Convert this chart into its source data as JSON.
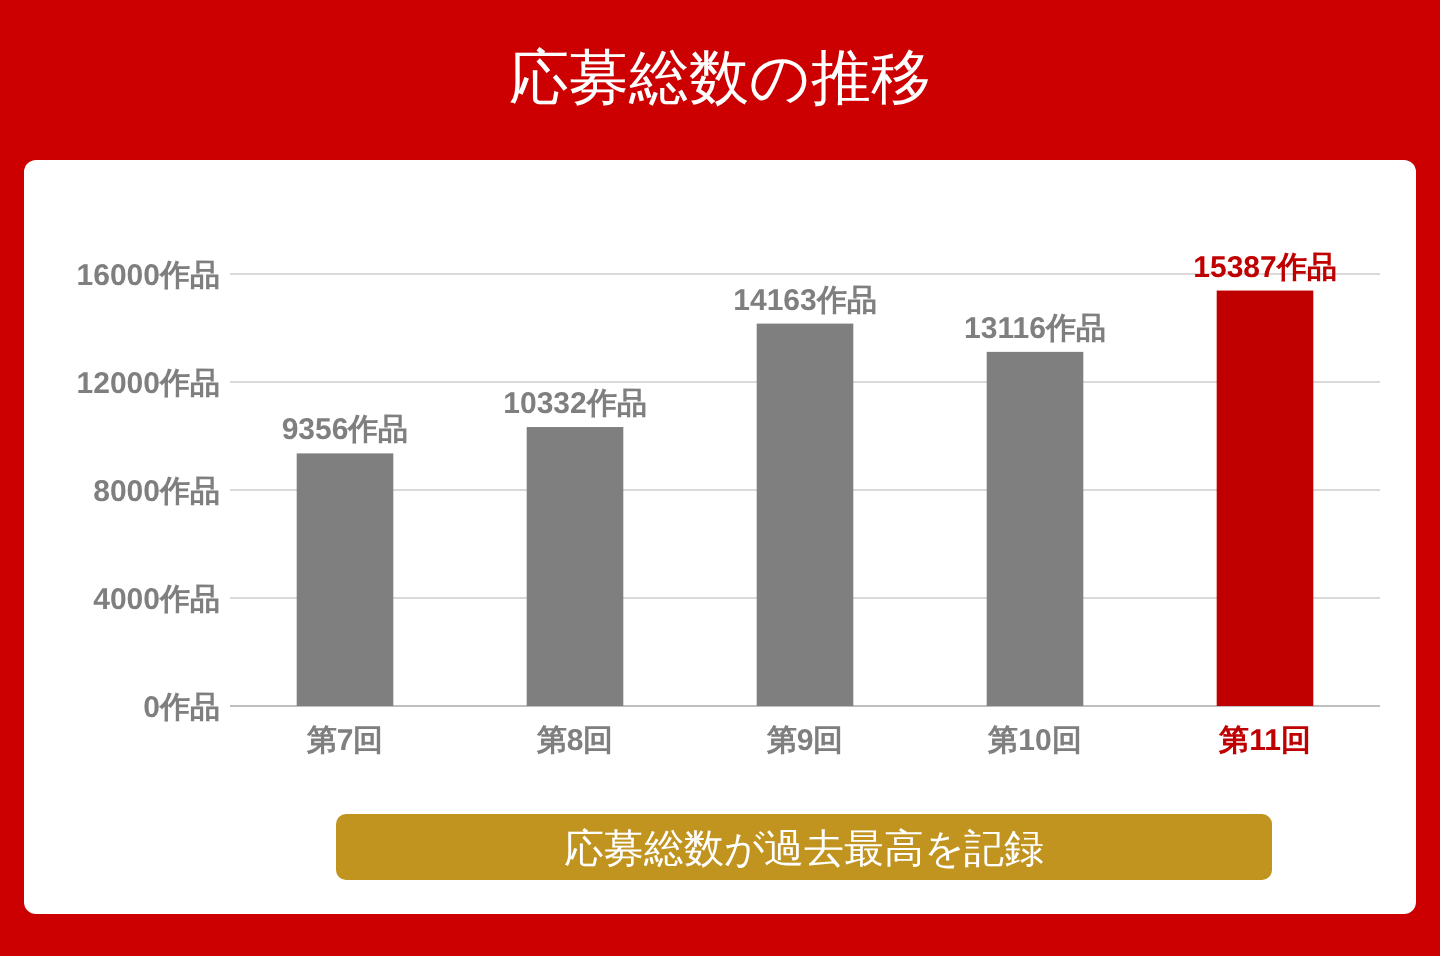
{
  "chart_data": {
    "type": "bar",
    "title": "応募総数の推移",
    "categories": [
      "第7回",
      "第8回",
      "第9回",
      "第10回",
      "第11回"
    ],
    "values": [
      9356,
      10332,
      14163,
      13116,
      15387
    ],
    "colors": [
      "#7f7f7f",
      "#7f7f7f",
      "#7f7f7f",
      "#7f7f7f",
      "#c00000"
    ],
    "value_labels": [
      "9356作品",
      "10332作品",
      "14163作品",
      "13116作品",
      "15387作品"
    ],
    "ylim": [
      0,
      16000
    ],
    "yticks": [
      {
        "value": 0,
        "label": "0作品"
      },
      {
        "value": 4000,
        "label": "4000作品"
      },
      {
        "value": 8000,
        "label": "8000作品"
      },
      {
        "value": 12000,
        "label": "12000作品"
      },
      {
        "value": 16000,
        "label": "16000作品"
      }
    ],
    "grid": "y",
    "annotations": [
      "応募総数が過去最高を記録"
    ]
  }
}
